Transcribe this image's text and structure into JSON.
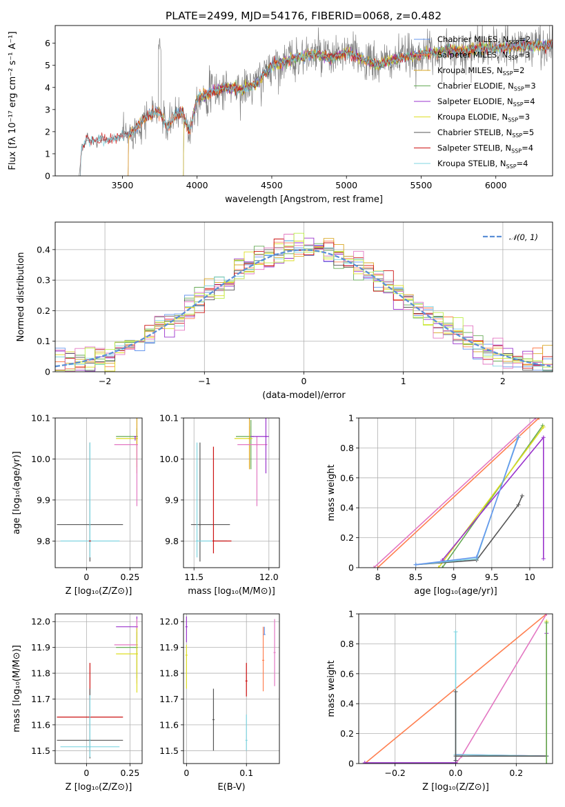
{
  "figure": {
    "title": "PLATE=2499, MJD=54176, FIBERID=0068, z=0.482",
    "palette": {
      "Chabrier MILES": "#6495ed",
      "Salpeter MILES": "#ff7f50",
      "Kroupa MILES": "#daa520",
      "Chabrier ELODIE": "#66aa55",
      "Salpeter ELODIE": "#9932cc",
      "Kroupa ELODIE": "#dddd22",
      "Chabrier STELIB": "#555555",
      "Salpeter STELIB": "#cc1111",
      "Kroupa STELIB": "#7fd4e0",
      "extra_pink": "#e377c2",
      "extra_lime": "#bbee44"
    }
  },
  "chart_data": [
    {
      "type": "line",
      "id": "spectrum",
      "xlabel": "wavelength [Angstrom, rest frame]",
      "ylabel": "Flux [fλ 10⁻¹⁷ erg cm⁻² s⁻¹ A⁻¹]",
      "xlim": [
        3050,
        6380
      ],
      "ylim": [
        0,
        6.8
      ],
      "xticks": [
        3500,
        4000,
        4500,
        5000,
        5500,
        6000
      ],
      "yticks": [
        0,
        1,
        2,
        3,
        4,
        5,
        6
      ],
      "grid": false,
      "legend_position": "top-right",
      "data_observed_start": 3210,
      "data_end": 6380,
      "series": [
        {
          "name": "Chabrier MILES, N",
          "sub": "SSP",
          "suffix": "=2",
          "start": 3530,
          "color": "#6495ed"
        },
        {
          "name": "Salpeter MILES, N",
          "sub": "SSP",
          "suffix": "=3",
          "start": 3530,
          "color": "#ff7f50"
        },
        {
          "name": "Kroupa MILES, N",
          "sub": "SSP",
          "suffix": "=2",
          "start": 3530,
          "color": "#daa520"
        },
        {
          "name": "Chabrier ELODIE, N",
          "sub": "SSP",
          "suffix": "=3",
          "start": 3900,
          "color": "#66aa55"
        },
        {
          "name": "Salpeter ELODIE, N",
          "sub": "SSP",
          "suffix": "=4",
          "start": 3900,
          "color": "#9932cc"
        },
        {
          "name": "Kroupa ELODIE, N",
          "sub": "SSP",
          "suffix": "=3",
          "start": 3900,
          "color": "#dddd22"
        },
        {
          "name": "Chabrier STELIB, N",
          "sub": "SSP",
          "suffix": "=5",
          "start": 3210,
          "color": "#555555"
        },
        {
          "name": "Salpeter STELIB, N",
          "sub": "SSP",
          "suffix": "=4",
          "start": 3210,
          "color": "#cc1111"
        },
        {
          "name": "Kroupa STELIB, N",
          "sub": "SSP",
          "suffix": "=4",
          "start": 3210,
          "color": "#7fd4e0"
        }
      ],
      "continuum_points": [
        [
          3210,
          0
        ],
        [
          3230,
          1.3
        ],
        [
          3260,
          1.6
        ],
        [
          3300,
          1.6
        ],
        [
          3350,
          1.6
        ],
        [
          3400,
          1.65
        ],
        [
          3450,
          1.7
        ],
        [
          3500,
          1.8
        ],
        [
          3550,
          1.9
        ],
        [
          3600,
          2.2
        ],
        [
          3650,
          2.6
        ],
        [
          3700,
          2.8
        ],
        [
          3750,
          2.9
        ],
        [
          3800,
          2.2
        ],
        [
          3850,
          2.7
        ],
        [
          3900,
          2.9
        ],
        [
          3950,
          2.0
        ],
        [
          4000,
          3.5
        ],
        [
          4100,
          3.8
        ],
        [
          4200,
          4.0
        ],
        [
          4300,
          3.9
        ],
        [
          4400,
          4.2
        ],
        [
          4500,
          5.0
        ],
        [
          4600,
          5.2
        ],
        [
          4700,
          5.4
        ],
        [
          4800,
          5.5
        ],
        [
          4900,
          5.3
        ],
        [
          5000,
          5.6
        ],
        [
          5100,
          5.3
        ],
        [
          5200,
          5.0
        ],
        [
          5300,
          5.2
        ],
        [
          5400,
          5.4
        ],
        [
          5500,
          5.5
        ],
        [
          5600,
          5.6
        ],
        [
          5700,
          5.7
        ],
        [
          5800,
          5.6
        ],
        [
          5900,
          5.8
        ],
        [
          6000,
          5.8
        ],
        [
          6100,
          5.8
        ],
        [
          6200,
          5.9
        ],
        [
          6380,
          5.9
        ]
      ]
    },
    {
      "type": "line",
      "id": "residuals",
      "xlabel": "(data-model)/error",
      "ylabel": "Normed distribution",
      "xlim": [
        -2.5,
        2.5
      ],
      "ylim": [
        0,
        0.49
      ],
      "xticks": [
        -2,
        -1,
        0,
        1,
        2
      ],
      "yticks": [
        0,
        0.1,
        0.2,
        0.3,
        0.4
      ],
      "grid": true,
      "legend_position": "top-right",
      "reference_curve": {
        "label": "𝒩(0, 1)",
        "mean": 0,
        "sigma": 1,
        "color": "#5b8fd6"
      },
      "bin_width": 0.1,
      "histogram_series": [
        "#6495ed",
        "#ff7f50",
        "#daa520",
        "#66aa55",
        "#9932cc",
        "#dddd22",
        "#555555",
        "#cc1111",
        "#7fd4e0",
        "#e377c2",
        "#bbee44"
      ]
    },
    {
      "type": "scatter",
      "id": "age-vs-Z",
      "xlabel": "Z [log₁₀(Z/Z⊙)]",
      "ylabel": "age  [log₁₀(age/yr)]",
      "xlim": [
        -0.18,
        0.32
      ],
      "ylim": [
        9.735,
        10.1
      ],
      "xticks": [
        0.0,
        0.25
      ],
      "ytick_labels": [
        "9.8",
        "9.9",
        "10.0",
        "10.1"
      ],
      "yticks": [
        9.8,
        9.9,
        10.0,
        10.1
      ],
      "grid": true,
      "errorbars": [
        {
          "color": "#555555",
          "x": 0.02,
          "y": 9.84,
          "xerr": 0.19,
          "yerr": [
            0.09,
            0.2
          ]
        },
        {
          "color": "#7fd4e0",
          "x": 0.02,
          "y": 9.8,
          "xerr": 0.17,
          "yerr": [
            0.04,
            0.24
          ]
        },
        {
          "color": "#cc1111",
          "x": 0.02,
          "y": 9.8,
          "xerr": 0.0,
          "yerr": [
            0.0,
            0.0
          ]
        },
        {
          "color": "#66aa55",
          "x": 0.29,
          "y": 10.055,
          "xerr": [
            0.12,
            0.0
          ],
          "yerr": [
            0.0,
            0.02
          ]
        },
        {
          "color": "#dddd22",
          "x": 0.29,
          "y": 10.05,
          "xerr": [
            0.12,
            0.0
          ],
          "yerr": [
            0.07,
            0.0
          ]
        },
        {
          "color": "#daa520",
          "x": 0.29,
          "y": 10.115,
          "xerr": [
            0.13,
            0.0
          ],
          "yerr": [
            0.15,
            0.0
          ]
        },
        {
          "color": "#e377c2",
          "x": 0.29,
          "y": 10.035,
          "xerr": [
            0.13,
            0.0
          ],
          "yerr": [
            0.15,
            0.0
          ]
        },
        {
          "color": "#9932cc",
          "x": 0.28,
          "y": 10.055,
          "xerr": [
            0.0,
            0.0
          ],
          "yerr": [
            0.01,
            0.0
          ]
        }
      ]
    },
    {
      "type": "scatter",
      "id": "age-vs-mass",
      "xlabel": "mass [log₁₀(M/M⊙)]",
      "ylabel": "",
      "xlim": [
        11.43,
        12.07
      ],
      "ylim": [
        9.735,
        10.1
      ],
      "xticks": [
        11.5,
        12.0
      ],
      "xtick_labels": [
        "11.5",
        "12.0"
      ],
      "ytick_labels": [
        "9.8",
        "9.9",
        "10.0",
        "10.1"
      ],
      "yticks": [
        9.8,
        9.9,
        10.0,
        10.1
      ],
      "grid": true,
      "errorbars": [
        {
          "color": "#555555",
          "x": 11.54,
          "y": 9.84,
          "xerr": [
            0.06,
            0.2
          ],
          "yerr": [
            0.09,
            0.2
          ]
        },
        {
          "color": "#7fd4e0",
          "x": 11.52,
          "y": 9.8,
          "xerr": [
            0.0,
            0.2
          ],
          "yerr": [
            0.04,
            0.24
          ]
        },
        {
          "color": "#cc1111",
          "x": 11.63,
          "y": 9.8,
          "xerr": [
            0.0,
            0.12
          ],
          "yerr": [
            0.03,
            0.23
          ]
        },
        {
          "color": "#66aa55",
          "x": 11.88,
          "y": 10.055,
          "xerr": [
            0.1,
            0.02
          ],
          "yerr": [
            0.08,
            0.04
          ]
        },
        {
          "color": "#dddd22",
          "x": 11.87,
          "y": 10.05,
          "xerr": [
            0.1,
            0.02
          ],
          "yerr": [
            0.07,
            0.03
          ]
        },
        {
          "color": "#daa520",
          "x": 11.87,
          "y": 10.115,
          "xerr": [
            0.1,
            0.02
          ],
          "yerr": [
            0.14,
            0.04
          ]
        },
        {
          "color": "#e377c2",
          "x": 11.92,
          "y": 10.035,
          "xerr": [
            0.13,
            0.07
          ],
          "yerr": [
            0.15,
            0.02
          ]
        },
        {
          "color": "#9932cc",
          "x": 11.98,
          "y": 10.055,
          "xerr": [
            0.1,
            0.02
          ],
          "yerr": [
            0.09,
            0.06
          ]
        }
      ]
    },
    {
      "type": "line",
      "id": "cumulative-age",
      "xlabel": "age  [log₁₀(age/yr)]",
      "ylabel": "mass weight",
      "xlim": [
        7.75,
        10.3
      ],
      "ylim": [
        0,
        1.0
      ],
      "xticks": [
        8.0,
        8.5,
        9.0,
        9.5,
        10.0
      ],
      "yticks": [
        0,
        0.2,
        0.4,
        0.6,
        0.8,
        1.0
      ],
      "grid": true,
      "series": [
        {
          "color": "#e377c2",
          "points": [
            [
              7.95,
              0
            ],
            [
              10.08,
              1.0
            ]
          ]
        },
        {
          "color": "#ff7f50",
          "points": [
            [
              8.0,
              0
            ],
            [
              10.12,
              1.0
            ]
          ]
        },
        {
          "color": "#66aa55",
          "points": [
            [
              8.85,
              0
            ],
            [
              10.17,
              0.95
            ]
          ]
        },
        {
          "color": "#dddd22",
          "points": [
            [
              8.8,
              0
            ],
            [
              10.18,
              0.94
            ]
          ]
        },
        {
          "color": "#9932cc",
          "points": [
            [
              8.85,
              0.05
            ],
            [
              10.18,
              0.87
            ],
            [
              10.18,
              0.06
            ]
          ]
        },
        {
          "color": "#555555",
          "points": [
            [
              8.5,
              0.02
            ],
            [
              9.3,
              0.05
            ],
            [
              9.85,
              0.42
            ],
            [
              9.9,
              0.48
            ]
          ]
        },
        {
          "color": "#7fd4e0",
          "points": [
            [
              8.5,
              0.02
            ],
            [
              9.3,
              0.06
            ],
            [
              9.85,
              0.88
            ]
          ]
        },
        {
          "color": "#6495ed",
          "points": [
            [
              8.5,
              0.02
            ],
            [
              9.3,
              0.07
            ],
            [
              9.85,
              0.87
            ]
          ]
        }
      ]
    },
    {
      "type": "scatter",
      "id": "mass-vs-Z",
      "xlabel": "Z [log₁₀(Z/Z⊙)]",
      "ylabel": "mass [log₁₀(M/M⊙)]",
      "xlim": [
        -0.18,
        0.32
      ],
      "ylim": [
        11.45,
        12.03
      ],
      "xticks": [
        0.0,
        0.25
      ],
      "ytick_labels": [
        "11.5",
        "11.6",
        "11.7",
        "11.8",
        "11.9",
        "12.0"
      ],
      "yticks": [
        11.5,
        11.6,
        11.7,
        11.8,
        11.9,
        12.0
      ],
      "grid": true,
      "errorbars": [
        {
          "color": "#cc1111",
          "x": 0.02,
          "y": 11.63,
          "xerr": 0.19,
          "yerr": [
            0.0,
            0.21
          ]
        },
        {
          "color": "#555555",
          "x": 0.02,
          "y": 11.54,
          "xerr": 0.19,
          "yerr": [
            0.07,
            0.2
          ]
        },
        {
          "color": "#7fd4e0",
          "x": 0.02,
          "y": 11.515,
          "xerr": 0.17,
          "yerr": [
            0.04,
            0.2
          ]
        },
        {
          "color": "#9932cc",
          "x": 0.29,
          "y": 11.98,
          "xerr": [
            0.12,
            0.0
          ],
          "yerr": [
            0.06,
            0.04
          ]
        },
        {
          "color": "#e377c2",
          "x": 0.29,
          "y": 11.91,
          "xerr": [
            0.13,
            0.0
          ],
          "yerr": [
            0.15,
            0.1
          ]
        },
        {
          "color": "#66aa55",
          "x": 0.29,
          "y": 11.9,
          "xerr": [
            0.12,
            0.0
          ],
          "yerr": [
            0.12,
            0.06
          ]
        },
        {
          "color": "#dddd22",
          "x": 0.29,
          "y": 11.875,
          "xerr": [
            0.12,
            0.0
          ],
          "yerr": [
            0.15,
            0.1
          ]
        }
      ]
    },
    {
      "type": "scatter",
      "id": "mass-vs-ebv",
      "xlabel": "E(B-V)",
      "ylabel": "",
      "xlim": [
        -0.005,
        0.155
      ],
      "ylim": [
        11.45,
        12.03
      ],
      "xticks": [
        0.0,
        0.1
      ],
      "ytick_labels": [
        "11.5",
        "11.6",
        "11.7",
        "11.8",
        "11.9",
        "12.0"
      ],
      "yticks": [
        11.5,
        11.6,
        11.7,
        11.8,
        11.9,
        12.0
      ],
      "grid": true,
      "errorbars": [
        {
          "color": "#9932cc",
          "x": 0.0,
          "y": 11.98,
          "xerr": [
            0,
            0
          ],
          "yerr": [
            0.06,
            0.04
          ]
        },
        {
          "color": "#dddd22",
          "x": 0.0,
          "y": 11.87,
          "xerr": [
            0,
            0
          ],
          "yerr": [
            0.13,
            0.04
          ]
        },
        {
          "color": "#555555",
          "x": 0.045,
          "y": 11.62,
          "xerr": [
            0,
            0
          ],
          "yerr": [
            0.12,
            0.12
          ]
        },
        {
          "color": "#cc1111",
          "x": 0.1,
          "y": 11.77,
          "xerr": [
            0,
            0
          ],
          "yerr": [
            0.06,
            0.07
          ]
        },
        {
          "color": "#7fd4e0",
          "x": 0.1,
          "y": 11.54,
          "xerr": [
            0,
            0
          ],
          "yerr": [
            0.04,
            0.1
          ]
        },
        {
          "color": "#ff7f50",
          "x": 0.128,
          "y": 11.85,
          "xerr": [
            0,
            0
          ],
          "yerr": [
            0.12,
            0.13
          ]
        },
        {
          "color": "#6495ed",
          "x": 0.13,
          "y": 11.95,
          "xerr": [
            0,
            0
          ],
          "yerr": [
            0.0,
            0.03
          ]
        },
        {
          "color": "#e377c2",
          "x": 0.147,
          "y": 11.88,
          "xerr": [
            0,
            0
          ],
          "yerr": [
            0.13,
            0.13
          ]
        }
      ]
    },
    {
      "type": "line",
      "id": "cumulative-Z",
      "xlabel": "Z [log₁₀(Z/Z⊙)]",
      "ylabel": "mass weight",
      "xlim": [
        -0.32,
        0.32
      ],
      "ylim": [
        0,
        1.0
      ],
      "xticks": [
        -0.2,
        0.0,
        0.2
      ],
      "xtick_labels": [
        "−0.2",
        "0.0",
        "0.2"
      ],
      "yticks": [
        0,
        0.2,
        0.4,
        0.6,
        0.8,
        1.0
      ],
      "grid": true,
      "series": [
        {
          "color": "#ff7f50",
          "points": [
            [
              -0.3,
              0
            ],
            [
              0.3,
              1.0
            ]
          ]
        },
        {
          "color": "#e377c2",
          "points": [
            [
              0.0,
              0
            ],
            [
              0.02,
              0.05
            ],
            [
              0.3,
              1.0
            ]
          ]
        },
        {
          "color": "#9932cc",
          "points": [
            [
              -0.3,
              0.005
            ],
            [
              0.0,
              0.005
            ],
            [
              0.0,
              0.06
            ],
            [
              0.3,
              0.05
            ],
            [
              0.3,
              0.87
            ]
          ]
        },
        {
          "color": "#7fd4e0",
          "points": [
            [
              0.0,
              0.02
            ],
            [
              0.0,
              0.88
            ],
            [
              0.0,
              0.06
            ],
            [
              0.3,
              0.05
            ]
          ]
        },
        {
          "color": "#555555",
          "points": [
            [
              0.0,
              0.02
            ],
            [
              0.0,
              0.48
            ],
            [
              0.0,
              0.05
            ],
            [
              0.3,
              0.05
            ]
          ]
        },
        {
          "color": "#dddd22",
          "points": [
            [
              0.3,
              0.0
            ],
            [
              0.3,
              0.95
            ]
          ]
        },
        {
          "color": "#66aa55",
          "points": [
            [
              0.3,
              0.0
            ],
            [
              0.3,
              0.94
            ]
          ]
        }
      ]
    }
  ]
}
